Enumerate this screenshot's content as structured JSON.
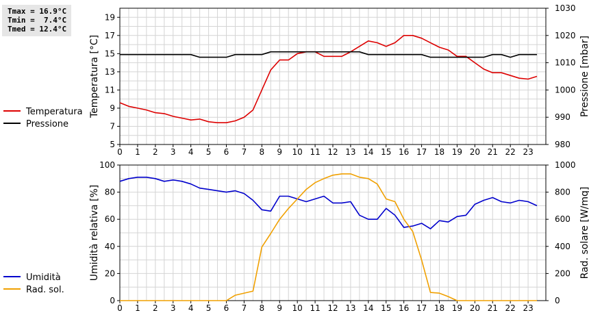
{
  "stats": {
    "tmax": "Tmax = 16.9°C",
    "tmin": "Tmin =  7.4°C",
    "tmed": "Tmed = 12.4°C"
  },
  "chart_data": [
    {
      "type": "line",
      "x_ticks": [
        "0",
        "1",
        "2",
        "3",
        "4",
        "5",
        "6",
        "7",
        "8",
        "9",
        "10",
        "11",
        "12",
        "13",
        "14",
        "15",
        "16",
        "17",
        "18",
        "19",
        "20",
        "21",
        "22",
        "23"
      ],
      "xlim": [
        0,
        24
      ],
      "ylabel": "Temperatura [°C]",
      "ylim": [
        5,
        20
      ],
      "y_ticks": [
        "5",
        "7",
        "9",
        "11",
        "13",
        "15",
        "17",
        "19"
      ],
      "y2label": "Pressione [mbar]",
      "y2lim": [
        980,
        1030
      ],
      "y2_ticks": [
        "980",
        "990",
        "1000",
        "1010",
        "1020",
        "1030"
      ],
      "grid": true,
      "legend_position": "left",
      "series": [
        {
          "name": "Temperatura",
          "color": "#dd0000",
          "axis": "left",
          "x": [
            0,
            0.5,
            1,
            1.5,
            2,
            2.5,
            3,
            3.5,
            4,
            4.5,
            5,
            5.5,
            6,
            6.5,
            7,
            7.5,
            8,
            8.5,
            9,
            9.5,
            10,
            10.5,
            11,
            11.5,
            12,
            12.5,
            13,
            13.5,
            14,
            14.5,
            15,
            15.5,
            16,
            16.5,
            17,
            17.5,
            18,
            18.5,
            19,
            19.5,
            20,
            20.5,
            21,
            21.5,
            22,
            22.5,
            23,
            23.5
          ],
          "y": [
            9.6,
            9.2,
            9.0,
            8.8,
            8.5,
            8.4,
            8.1,
            7.9,
            7.7,
            7.8,
            7.5,
            7.4,
            7.4,
            7.6,
            8.0,
            8.8,
            11.0,
            13.2,
            14.3,
            14.3,
            15.0,
            15.2,
            15.2,
            14.7,
            14.7,
            14.7,
            15.2,
            15.8,
            16.4,
            16.2,
            15.8,
            16.2,
            17.0,
            17.0,
            16.7,
            16.2,
            15.7,
            15.4,
            14.7,
            14.7,
            14.0,
            13.3,
            12.9,
            12.9,
            12.6,
            12.3,
            12.2,
            12.5
          ]
        },
        {
          "name": "Pressione",
          "color": "#000000",
          "axis": "right",
          "x": [
            0,
            1,
            2,
            3,
            4,
            4.5,
            5,
            6,
            6.5,
            7,
            8,
            8.5,
            9,
            10,
            11,
            12,
            13,
            13.5,
            14,
            15,
            16,
            17,
            17.5,
            18,
            19,
            20,
            20.5,
            21,
            21.5,
            22,
            22.5,
            23,
            23.5
          ],
          "y": [
            1013,
            1013,
            1013,
            1013,
            1013,
            1012,
            1012,
            1012,
            1013,
            1013,
            1013,
            1014,
            1014,
            1014,
            1014,
            1014,
            1014,
            1014,
            1013,
            1013,
            1013,
            1013,
            1012,
            1012,
            1012,
            1012,
            1012,
            1013,
            1013,
            1012,
            1013,
            1013,
            1013
          ]
        }
      ]
    },
    {
      "type": "line",
      "x_ticks": [
        "0",
        "1",
        "2",
        "3",
        "4",
        "5",
        "6",
        "7",
        "8",
        "9",
        "10",
        "11",
        "12",
        "13",
        "14",
        "15",
        "16",
        "17",
        "18",
        "19",
        "20",
        "21",
        "22",
        "23"
      ],
      "xlim": [
        0,
        24
      ],
      "ylabel": "Umidità relativa [%]",
      "ylim": [
        0,
        100
      ],
      "y_ticks": [
        "0",
        "20",
        "40",
        "60",
        "80",
        "100"
      ],
      "y2label": "Rad. solare [W/mq]",
      "y2lim": [
        0,
        1000
      ],
      "y2_ticks": [
        "0",
        "200",
        "400",
        "600",
        "800",
        "1000"
      ],
      "grid": true,
      "legend_position": "left",
      "series": [
        {
          "name": "Umidità",
          "color": "#0000cc",
          "axis": "left",
          "x": [
            0,
            0.5,
            1,
            1.5,
            2,
            2.5,
            3,
            3.5,
            4,
            4.5,
            5,
            5.5,
            6,
            6.5,
            7,
            7.5,
            8,
            8.5,
            9,
            9.5,
            10,
            10.5,
            11,
            11.5,
            12,
            12.5,
            13,
            13.5,
            14,
            14.5,
            15,
            15.5,
            16,
            16.5,
            17,
            17.5,
            18,
            18.5,
            19,
            19.5,
            20,
            20.5,
            21,
            21.5,
            22,
            22.5,
            23,
            23.5
          ],
          "y": [
            88,
            90,
            91,
            91,
            90,
            88,
            89,
            88,
            86,
            83,
            82,
            81,
            80,
            81,
            79,
            74,
            67,
            66,
            77,
            77,
            75,
            73,
            75,
            77,
            72,
            72,
            73,
            63,
            60,
            60,
            68,
            63,
            54,
            55,
            57,
            53,
            59,
            58,
            62,
            63,
            71,
            74,
            76,
            73,
            72,
            74,
            73,
            70
          ]
        },
        {
          "name": "Rad. sol.",
          "color": "#f0a000",
          "axis": "right",
          "x": [
            0,
            1,
            2,
            3,
            4,
            5,
            6,
            6.5,
            7,
            7.5,
            8,
            8.5,
            9,
            9.5,
            10,
            10.5,
            11,
            11.5,
            12,
            12.5,
            13,
            13.5,
            14,
            14.5,
            15,
            15.5,
            16,
            16.5,
            17,
            17.5,
            18,
            18.5,
            19,
            20,
            21,
            22,
            23,
            23.5
          ],
          "y": [
            0,
            0,
            0,
            0,
            0,
            0,
            0,
            40,
            55,
            70,
            395,
            495,
            600,
            680,
            750,
            820,
            870,
            900,
            925,
            935,
            935,
            910,
            900,
            860,
            750,
            730,
            600,
            510,
            300,
            60,
            55,
            30,
            0,
            0,
            0,
            0,
            0,
            0
          ]
        }
      ]
    }
  ]
}
